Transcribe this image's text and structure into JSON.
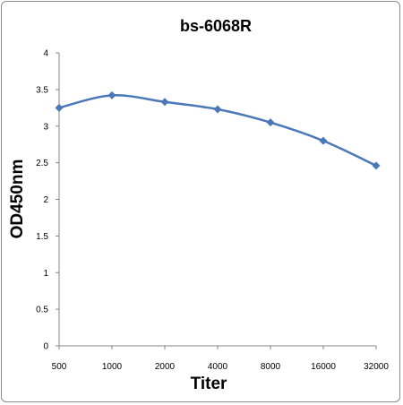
{
  "chart_data": {
    "type": "line",
    "title": "bs-6068R",
    "xlabel": "Titer",
    "ylabel": "OD450nm",
    "categories": [
      "500",
      "1000",
      "2000",
      "4000",
      "8000",
      "16000",
      "32000"
    ],
    "series": [
      {
        "values": [
          3.25,
          3.42,
          3.33,
          3.23,
          3.05,
          2.8,
          2.46
        ],
        "color": "#4a78b8"
      }
    ],
    "ylim": [
      0,
      4
    ],
    "yticks": [
      "0",
      "0.5",
      "1",
      "1.5",
      "2",
      "2.5",
      "3",
      "3.5",
      "4"
    ],
    "grid": false,
    "legend": "none",
    "marker": "diamond"
  }
}
